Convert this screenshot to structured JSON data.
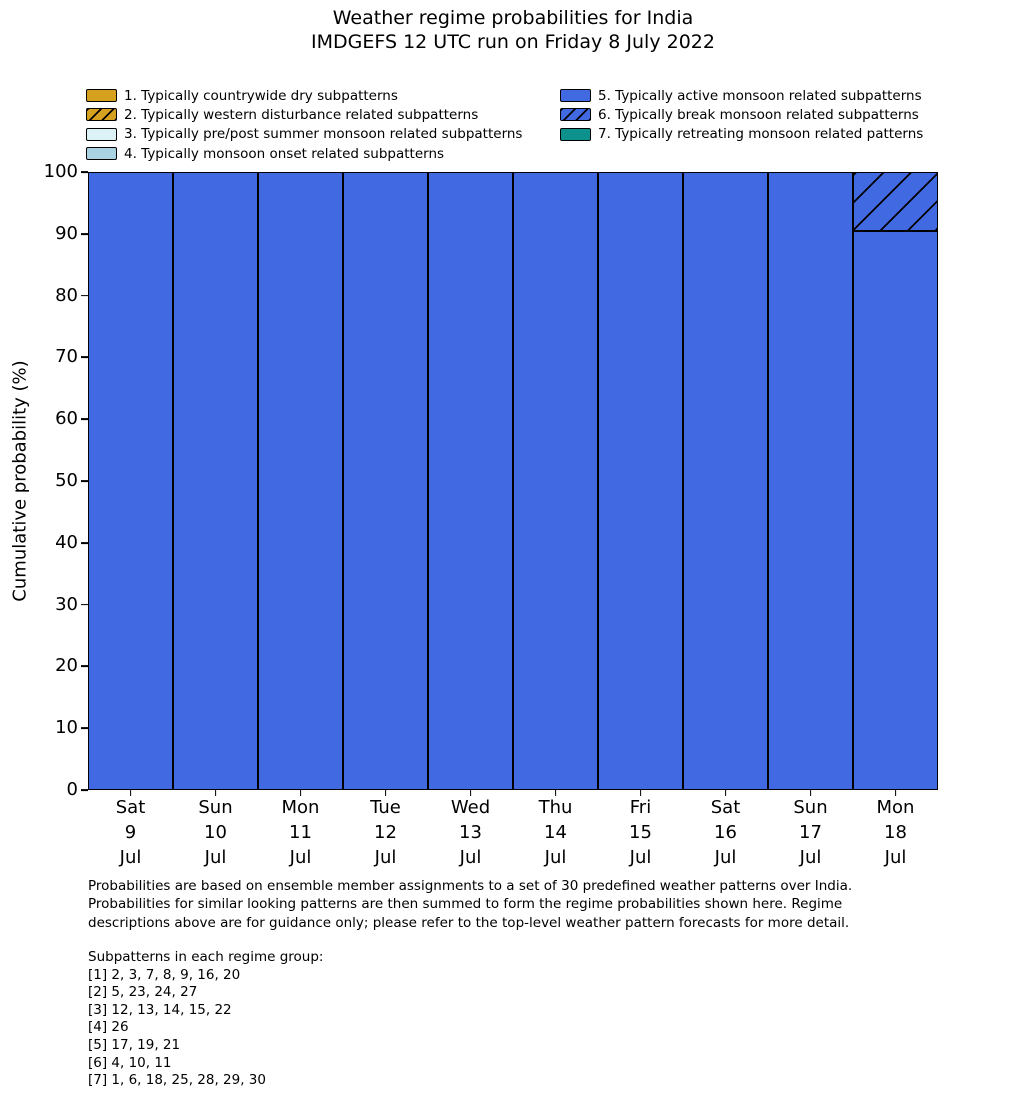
{
  "title": "Weather regime probabilities for India",
  "subtitle": "IMDGEFS 12 UTC run on Friday 8 July 2022",
  "legend": {
    "columns": [
      [
        0,
        1,
        2,
        3
      ],
      [
        4,
        5,
        6
      ]
    ],
    "items": [
      {
        "label": "1. Typically countrywide dry subpatterns",
        "color": "#d6a11e",
        "hatch": false
      },
      {
        "label": "2. Typically western disturbance related subpatterns",
        "color": "#d6a11e",
        "hatch": true
      },
      {
        "label": "3. Typically pre/post summer monsoon related subpatterns",
        "color": "#dcf2f6",
        "hatch": false
      },
      {
        "label": "4. Typically monsoon onset related subpatterns",
        "color": "#a9d3e2",
        "hatch": false
      },
      {
        "label": "5. Typically active monsoon related subpatterns",
        "color": "#4169e1",
        "hatch": false
      },
      {
        "label": "6. Typically break monsoon related subpatterns",
        "color": "#4169e1",
        "hatch": true
      },
      {
        "label": "7. Typically retreating monsoon related patterns",
        "color": "#0d918c",
        "hatch": false
      }
    ]
  },
  "chart_data": {
    "type": "bar",
    "stacked": true,
    "title": "Weather regime probabilities for India — IMDGEFS 12 UTC run on Friday 8 July 2022",
    "xlabel": "",
    "ylabel": "Cumulative probability (%)",
    "ylim": [
      0,
      100
    ],
    "yticks": [
      0,
      10,
      20,
      30,
      40,
      50,
      60,
      70,
      80,
      90,
      100
    ],
    "grid": false,
    "legend_position": "top",
    "bar_edge_color": "#000000",
    "categories": [
      {
        "weekday": "Sat",
        "day": "9",
        "month": "Jul"
      },
      {
        "weekday": "Sun",
        "day": "10",
        "month": "Jul"
      },
      {
        "weekday": "Mon",
        "day": "11",
        "month": "Jul"
      },
      {
        "weekday": "Tue",
        "day": "12",
        "month": "Jul"
      },
      {
        "weekday": "Wed",
        "day": "13",
        "month": "Jul"
      },
      {
        "weekday": "Thu",
        "day": "14",
        "month": "Jul"
      },
      {
        "weekday": "Fri",
        "day": "15",
        "month": "Jul"
      },
      {
        "weekday": "Sat",
        "day": "16",
        "month": "Jul"
      },
      {
        "weekday": "Sun",
        "day": "17",
        "month": "Jul"
      },
      {
        "weekday": "Mon",
        "day": "18",
        "month": "Jul"
      }
    ],
    "series": [
      {
        "name": "1. Typically countrywide dry subpatterns",
        "legend_index": 0,
        "values": [
          0,
          0,
          0,
          0,
          0,
          0,
          0,
          0,
          0,
          0
        ]
      },
      {
        "name": "2. Typically western disturbance related subpatterns",
        "legend_index": 1,
        "values": [
          0,
          0,
          0,
          0,
          0,
          0,
          0,
          0,
          0,
          0
        ]
      },
      {
        "name": "3. Typically pre/post summer monsoon related subpatterns",
        "legend_index": 2,
        "values": [
          0,
          0,
          0,
          0,
          0,
          0,
          0,
          0,
          0,
          0
        ]
      },
      {
        "name": "4. Typically monsoon onset related subpatterns",
        "legend_index": 3,
        "values": [
          0,
          0,
          0,
          0,
          0,
          0,
          0,
          0,
          0,
          0
        ]
      },
      {
        "name": "5. Typically active monsoon related subpatterns",
        "legend_index": 4,
        "values": [
          100,
          100,
          100,
          100,
          100,
          100,
          100,
          100,
          100,
          90.5
        ]
      },
      {
        "name": "6. Typically break monsoon related subpatterns",
        "legend_index": 5,
        "values": [
          0,
          0,
          0,
          0,
          0,
          0,
          0,
          0,
          0,
          9.5
        ]
      },
      {
        "name": "7. Typically retreating monsoon related patterns",
        "legend_index": 6,
        "values": [
          0,
          0,
          0,
          0,
          0,
          0,
          0,
          0,
          0,
          0
        ]
      }
    ]
  },
  "footnote": {
    "lines": [
      "Probabilities are based on ensemble member assignments to a set of 30 predefined weather patterns over India.",
      "Probabilities for similar looking patterns are then summed to form the regime probabilities shown here. Regime",
      "descriptions above are for guidance only; please refer to the top-level weather pattern forecasts for more detail."
    ]
  },
  "subpatterns": {
    "heading": "Subpatterns in each regime group:",
    "lines": [
      "[1] 2, 3, 7, 8, 9, 16, 20",
      "[2] 5, 23, 24, 27",
      "[3] 12, 13, 14, 15, 22",
      "[4] 26",
      "[5] 17, 19, 21",
      "[6] 4, 10, 11",
      "[7] 1, 6, 18, 25, 28, 29, 30"
    ]
  }
}
